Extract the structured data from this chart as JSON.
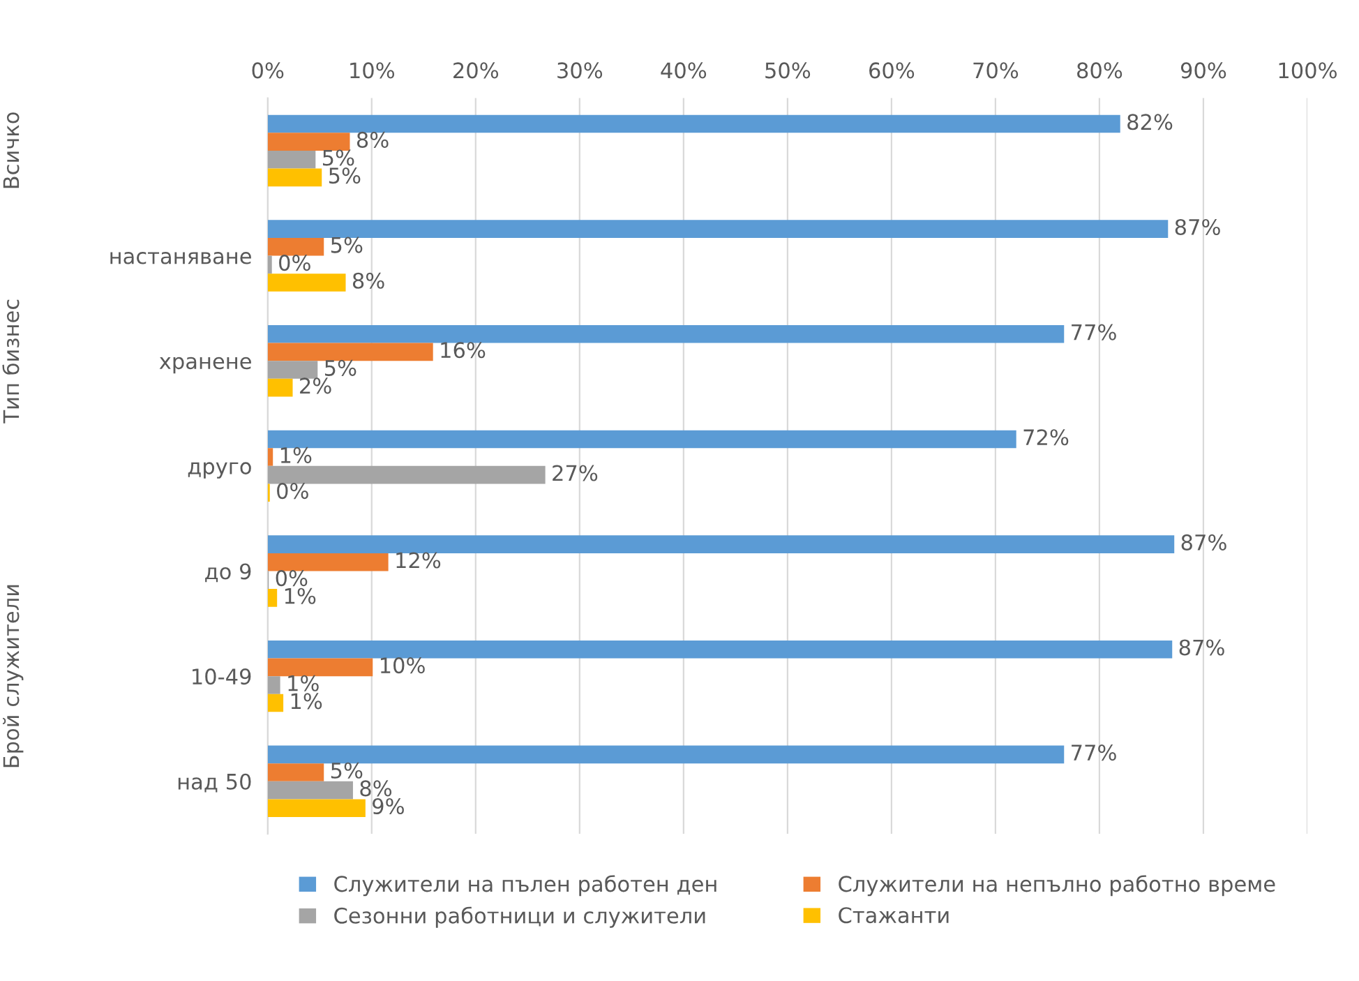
{
  "chart_data": {
    "type": "bar",
    "orientation": "horizontal",
    "categories": [
      null,
      "настаняване",
      "хранене",
      "друго",
      "до 9",
      "10-49",
      "над 50"
    ],
    "series": [
      {
        "name": "Служители на пълен работен ден",
        "color": "#5b9bd5",
        "values": [
          82.0,
          86.6,
          76.6,
          72.0,
          87.2,
          87.0,
          76.6
        ],
        "value_labels": [
          "82%",
          "87%",
          "77%",
          "72%",
          "87%",
          "87%",
          "77%"
        ]
      },
      {
        "name": "Служители на непълно работно време",
        "color": "#ed7d31",
        "values": [
          7.9,
          5.4,
          15.9,
          0.5,
          11.6,
          10.1,
          5.4
        ],
        "value_labels": [
          "8%",
          "5%",
          "16%",
          "1%",
          "12%",
          "10%",
          "5%"
        ]
      },
      {
        "name": "Сезонни работници и служители",
        "color": "#a5a5a5",
        "values": [
          4.6,
          0.4,
          4.8,
          26.7,
          0.1,
          1.2,
          8.2
        ],
        "value_labels": [
          "5%",
          "0%",
          "5%",
          "27%",
          "0%",
          "1%",
          "8%"
        ]
      },
      {
        "name": "Стажанти",
        "color": "#ffc000",
        "values": [
          5.2,
          7.5,
          2.4,
          0.2,
          0.9,
          1.5,
          9.4
        ],
        "value_labels": [
          "5%",
          "8%",
          "2%",
          "0%",
          "1%",
          "1%",
          "9%"
        ]
      }
    ],
    "xlim": [
      0,
      100
    ],
    "xticks": [
      {
        "value": 0,
        "label": "0%"
      },
      {
        "value": 10,
        "label": "10%"
      },
      {
        "value": 20,
        "label": "20%"
      },
      {
        "value": 30,
        "label": "30%"
      },
      {
        "value": 40,
        "label": "40%"
      },
      {
        "value": 50,
        "label": "50%"
      },
      {
        "value": 60,
        "label": "60%"
      },
      {
        "value": 70,
        "label": "70%"
      },
      {
        "value": 80,
        "label": "80%"
      },
      {
        "value": 90,
        "label": "90%"
      },
      {
        "value": 100,
        "label": "100%"
      }
    ],
    "grid": "x",
    "legend": "bottom",
    "annotations": [
      "Всичко",
      "Тип бизнес",
      "Брой служители"
    ]
  }
}
